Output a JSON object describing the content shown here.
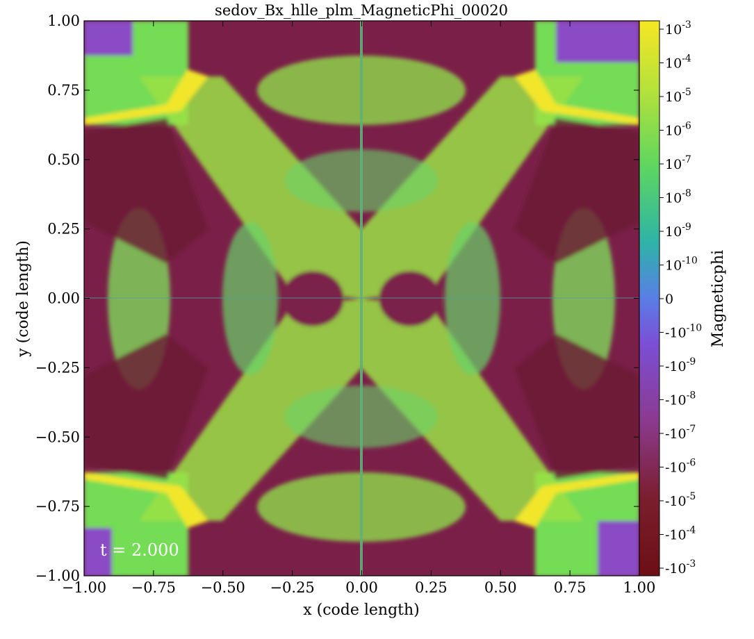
{
  "chart_data": {
    "type": "heatmap",
    "title": "sedov_Bx_hlle_plm_MagneticPhi_00020",
    "xlabel": "x  (code length)",
    "ylabel": "y  (code length)",
    "xlim": [
      -1.0,
      1.0
    ],
    "ylim": [
      -1.0,
      1.0
    ],
    "x_ticks": [
      "−1.00",
      "−0.75",
      "−0.50",
      "−0.25",
      "0.00",
      "0.25",
      "0.50",
      "0.75",
      "1.00"
    ],
    "y_ticks": [
      "−1.00",
      "−0.75",
      "−0.50",
      "−0.25",
      "0.00",
      "0.25",
      "0.50",
      "0.75",
      "1.00"
    ],
    "x_tick_values": [
      -1.0,
      -0.75,
      -0.5,
      -0.25,
      0.0,
      0.25,
      0.5,
      0.75,
      1.0
    ],
    "y_tick_values": [
      -1.0,
      -0.75,
      -0.5,
      -0.25,
      0.0,
      0.25,
      0.5,
      0.75,
      1.0
    ],
    "colorbar": {
      "label": "Magneticphi",
      "scale": "symlog",
      "range": [
        -0.001,
        0.001
      ],
      "linthresh": 1e-10,
      "tick_labels": [
        {
          "base": "10",
          "exp": "-3",
          "value": 0.001
        },
        {
          "base": "10",
          "exp": "-4",
          "value": 0.0001
        },
        {
          "base": "10",
          "exp": "-5",
          "value": 1e-05
        },
        {
          "base": "10",
          "exp": "-6",
          "value": 1e-06
        },
        {
          "base": "10",
          "exp": "-7",
          "value": 1e-07
        },
        {
          "base": "10",
          "exp": "-8",
          "value": 1e-08
        },
        {
          "base": "10",
          "exp": "-9",
          "value": 1e-09
        },
        {
          "base": "10",
          "exp": "-10",
          "value": 1e-10
        },
        {
          "base": "0",
          "exp": "",
          "value": 0
        },
        {
          "base": "-10",
          "exp": "-10",
          "value": -1e-10
        },
        {
          "base": "-10",
          "exp": "-9",
          "value": -1e-09
        },
        {
          "base": "-10",
          "exp": "-8",
          "value": -1e-08
        },
        {
          "base": "-10",
          "exp": "-7",
          "value": -1e-07
        },
        {
          "base": "-10",
          "exp": "-6",
          "value": -1e-06
        },
        {
          "base": "-10",
          "exp": "-5",
          "value": -1e-05
        },
        {
          "base": "-10",
          "exp": "-4",
          "value": -0.0001
        },
        {
          "base": "-10",
          "exp": "-3",
          "value": -0.001
        }
      ],
      "colors": [
        "#6d0f14",
        "#8b3a8f",
        "#7b4fd6",
        "#3f8fe0",
        "#2eb3a8",
        "#5fd65f",
        "#b7e23a",
        "#f7e624"
      ]
    },
    "annotation": "t = 2.000"
  }
}
